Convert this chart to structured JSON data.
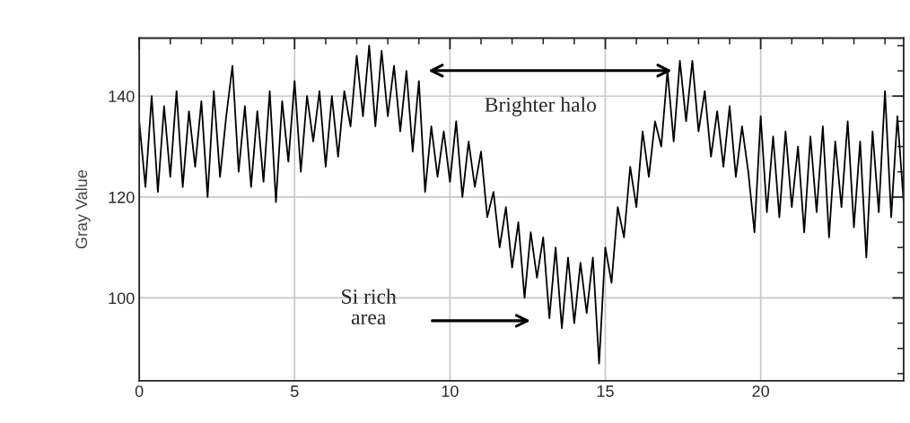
{
  "chart_data": {
    "type": "line",
    "ylabel": "Gray Value",
    "color": "#000000",
    "x": [
      0.0,
      0.2,
      0.4,
      0.6,
      0.8,
      1.0,
      1.2,
      1.4,
      1.6,
      1.8,
      2.0,
      2.2,
      2.4,
      2.6,
      2.8,
      3.0,
      3.2,
      3.4,
      3.6,
      3.8,
      4.0,
      4.2,
      4.4,
      4.6,
      4.8,
      5.0,
      5.2,
      5.4,
      5.6,
      5.8,
      6.0,
      6.2,
      6.4,
      6.6,
      6.8,
      7.0,
      7.2,
      7.4,
      7.6,
      7.8,
      8.0,
      8.2,
      8.4,
      8.6,
      8.8,
      9.0,
      9.2,
      9.4,
      9.6,
      9.8,
      10.0,
      10.2,
      10.4,
      10.6,
      10.8,
      11.0,
      11.2,
      11.4,
      11.6,
      11.8,
      12.0,
      12.2,
      12.4,
      12.6,
      12.8,
      13.0,
      13.2,
      13.4,
      13.6,
      13.8,
      14.0,
      14.2,
      14.4,
      14.6,
      14.8,
      15.0,
      15.2,
      15.4,
      15.6,
      15.8,
      16.0,
      16.2,
      16.4,
      16.6,
      16.8,
      17.0,
      17.2,
      17.4,
      17.6,
      17.8,
      18.0,
      18.2,
      18.4,
      18.6,
      18.8,
      19.0,
      19.2,
      19.4,
      19.6,
      19.8,
      20.0,
      20.2,
      20.4,
      20.6,
      20.8,
      21.0,
      21.2,
      21.4,
      21.6,
      21.8,
      22.0,
      22.2,
      22.4,
      22.6,
      22.8,
      23.0,
      23.2,
      23.4,
      23.6,
      23.8,
      24.0,
      24.2,
      24.4,
      24.6
    ],
    "values": [
      135,
      122,
      140,
      121,
      138,
      124,
      141,
      122,
      137,
      126,
      139,
      120,
      141,
      124,
      136,
      146,
      125,
      138,
      122,
      137,
      123,
      141,
      119,
      139,
      127,
      143,
      125,
      140,
      131,
      141,
      126,
      140,
      128,
      141,
      134,
      148,
      136,
      150,
      134,
      149,
      136,
      146,
      133,
      145,
      129,
      143,
      121,
      134,
      124,
      133,
      123,
      135,
      120,
      131,
      122,
      129,
      116,
      121,
      110,
      118,
      106,
      115,
      100,
      113,
      104,
      112,
      96,
      110,
      94,
      108,
      95,
      107,
      97,
      108,
      87,
      110,
      103,
      118,
      112,
      126,
      118,
      133,
      124,
      135,
      130,
      145,
      131,
      147,
      135,
      147,
      133,
      141,
      128,
      137,
      126,
      138,
      124,
      134,
      125,
      113,
      136,
      117,
      132,
      116,
      133,
      118,
      130,
      113,
      132,
      117,
      134,
      112,
      131,
      118,
      135,
      114,
      131,
      108,
      133,
      117,
      141,
      116,
      136,
      119
    ],
    "xlim": [
      0,
      24.6
    ],
    "ylim": [
      83.6,
      151.5
    ],
    "xticks": [
      0,
      5,
      10,
      15,
      20
    ],
    "yticks": [
      100,
      120,
      140
    ],
    "grid": true,
    "annotations": [
      "Brighter halo",
      "Si rich\narea"
    ]
  }
}
